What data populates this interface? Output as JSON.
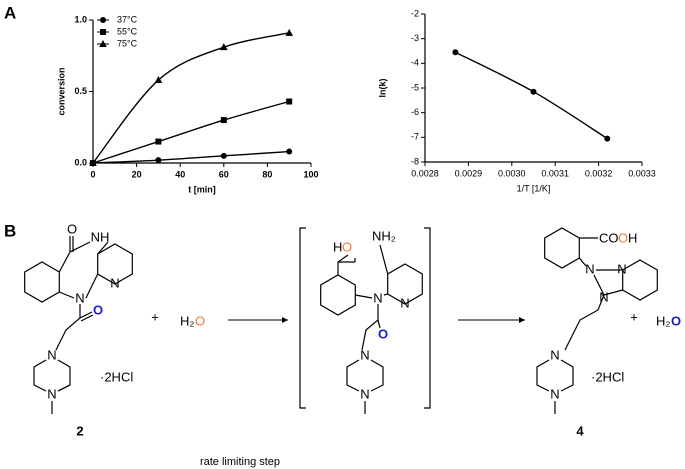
{
  "panel_labels": [
    "A",
    "B"
  ],
  "chart_data": [
    {
      "type": "scatter",
      "x_label": "t [min]",
      "y_label": "conversion",
      "x": [
        0,
        30,
        60,
        90
      ],
      "series": [
        {
          "name": "37°C",
          "marker": "circle",
          "color": "#000000",
          "values": [
            0,
            0.02,
            0.05,
            0.08
          ]
        },
        {
          "name": "55°C",
          "marker": "square",
          "color": "#000000",
          "values": [
            0,
            0.15,
            0.3,
            0.43
          ]
        },
        {
          "name": "75°C",
          "marker": "triangle",
          "color": "#000000",
          "values": [
            0,
            0.58,
            0.81,
            0.91
          ]
        }
      ],
      "xlim": [
        0,
        100
      ],
      "xticks": [
        0,
        20,
        40,
        60,
        80,
        100
      ],
      "ylim": [
        0,
        1
      ],
      "yticks": [
        {
          "value": 0,
          "label": "0.0"
        },
        {
          "value": 0.5,
          "label": "0.5"
        },
        {
          "value": 1,
          "label": "1.0"
        }
      ],
      "legend": "upper left"
    },
    {
      "type": "scatter",
      "x_label": "1/T [1/K]",
      "y_label": "ln(k)",
      "x": [
        0.00287,
        0.00305,
        0.00322
      ],
      "series": [
        {
          "marker": "circle",
          "color": "#000000",
          "values": [
            -3.55,
            -5.15,
            -7.05
          ]
        }
      ],
      "xlim": [
        0.0028,
        0.0033
      ],
      "xticks": [
        0.0028,
        0.0029,
        {
          "value": 0.003,
          "label": "0.0030"
        },
        0.0031,
        0.0032,
        0.0033
      ],
      "ylim": [
        -8,
        -2
      ],
      "yticks": [
        -2,
        -3,
        -4,
        -5,
        -6,
        -7,
        -8
      ]
    }
  ],
  "scheme": {
    "texts": [
      "O",
      "NH",
      "N",
      "N",
      "O",
      "N",
      "N",
      "·2HCl",
      "2",
      "+",
      "H₂",
      "O",
      "H",
      "O",
      "NH₂",
      "N",
      "N",
      "O",
      "N",
      "N",
      "CO",
      "O",
      "H",
      "N",
      "N",
      "N",
      "N",
      "N",
      "·2HCl",
      "4",
      "+",
      "H₂",
      "O",
      "rate limiting step"
    ]
  }
}
